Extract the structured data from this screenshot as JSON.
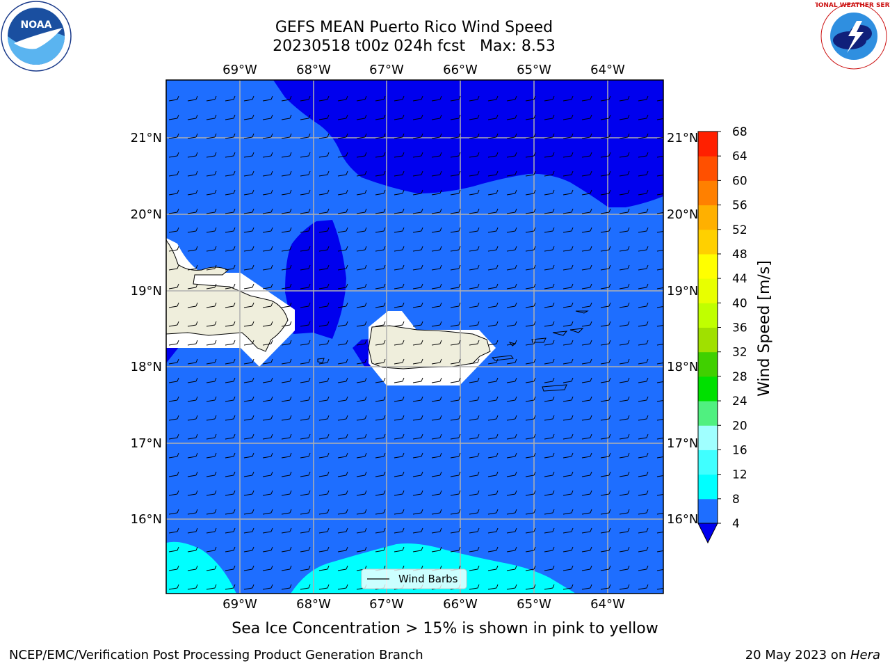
{
  "title_line1": "GEFS MEAN Puerto Rico Wind Speed",
  "title_line2": "20230518 t00z 024h fcst   Max: 8.53",
  "lon_labels": [
    "69°W",
    "68°W",
    "67°W",
    "66°W",
    "65°W",
    "64°W"
  ],
  "lat_labels": [
    "21°N",
    "20°N",
    "19°N",
    "18°N",
    "17°N",
    "16°N"
  ],
  "legend_label": "Wind Barbs",
  "colorbar": {
    "label": "Wind Speed [m/s]",
    "ticks": [
      "4",
      "8",
      "12",
      "16",
      "20",
      "24",
      "28",
      "32",
      "36",
      "40",
      "44",
      "48",
      "52",
      "56",
      "60",
      "64",
      "68"
    ],
    "colors": [
      "#1e6eff",
      "#00ffff",
      "#40ffff",
      "#a0ffff",
      "#50f080",
      "#00e000",
      "#40d000",
      "#a0e000",
      "#c0ff00",
      "#e8ff00",
      "#ffff00",
      "#ffd000",
      "#ffb000",
      "#ff8000",
      "#ff5000",
      "#ff2000"
    ],
    "extend_color": "#0000ee"
  },
  "colors": {
    "ocean_base": "#1e6eff",
    "calm": "#0000ee",
    "cyan": "#00ffff",
    "land": "#efeedc",
    "grid": "#b0b0b0"
  },
  "sea_ice_note": "Sea Ice Concentration > 15% is shown in pink to yellow",
  "footer_left": "NCEP/EMC/Verification Post Processing Product Generation Branch",
  "footer_date": "20 May 2023 on ",
  "footer_machine": "Hera",
  "noaa_text": "NOAA",
  "nws_text": "NATIONAL WEATHER SERVICE"
}
